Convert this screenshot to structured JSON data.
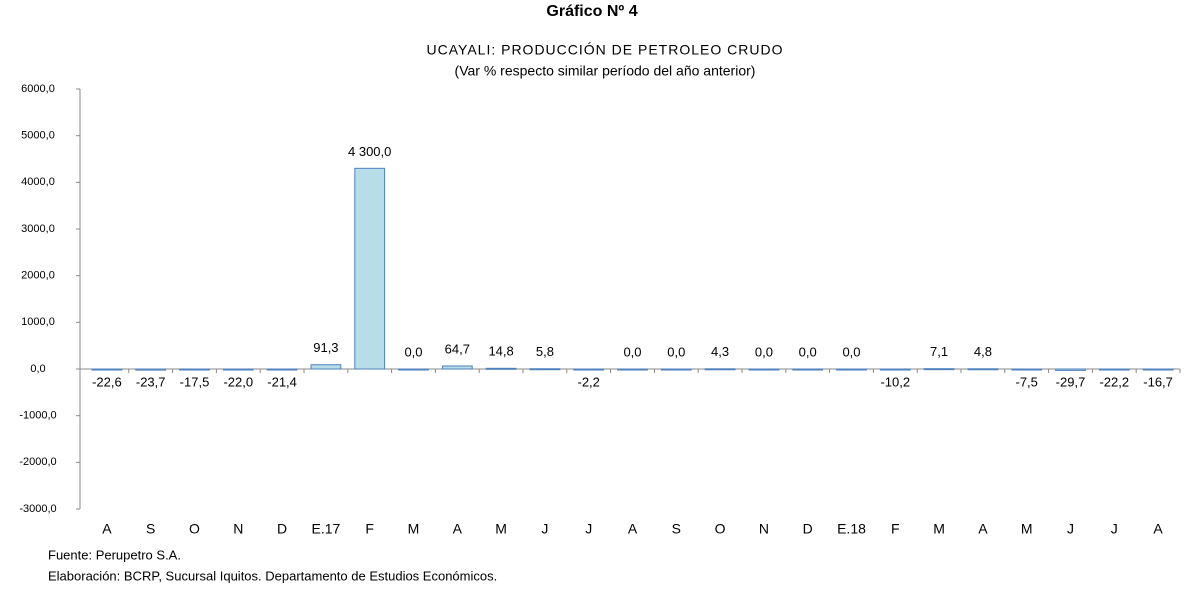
{
  "chart_data": {
    "type": "bar",
    "title": "Gráfico Nº 4",
    "subtitle": "UCAYALI: PRODUCCIÓN DE PETROLEO CRUDO",
    "subtitle2": "(Var % respecto similar período del año anterior)",
    "categories": [
      "A",
      "S",
      "O",
      "N",
      "D",
      "E.17",
      "F",
      "M",
      "A",
      "M",
      "J",
      "J",
      "A",
      "S",
      "O",
      "N",
      "D",
      "E.18",
      "F",
      "M",
      "A",
      "M",
      "J",
      "J",
      "A"
    ],
    "values": [
      -22.6,
      -23.7,
      -17.5,
      -22.0,
      -21.4,
      91.3,
      4300.0,
      0.0,
      64.7,
      14.8,
      5.8,
      -2.2,
      0.0,
      0.0,
      4.3,
      0.0,
      0.0,
      0.0,
      -10.2,
      7.1,
      4.8,
      -7.5,
      -29.7,
      -22.2,
      -16.7
    ],
    "value_labels": [
      "-22,6",
      "-23,7",
      "-17,5",
      "-22,0",
      "-21,4",
      "91,3",
      "4 300,0",
      "0,0",
      "64,7",
      "14,8",
      "5,8",
      "-2,2",
      "0,0",
      "0,0",
      "4,3",
      "0,0",
      "0,0",
      "0,0",
      "-10,2",
      "7,1",
      "4,8",
      "-7,5",
      "-29,7",
      "-22,2",
      "-16,7"
    ],
    "color": "#b7dde8",
    "ylim": [
      -3000,
      6000
    ],
    "yticks": [
      {
        "value": -3000,
        "label": "-3000,0"
      },
      {
        "value": -2000,
        "label": "-2000,0"
      },
      {
        "value": -1000,
        "label": "-1000,0"
      },
      {
        "value": 0,
        "label": "0,0"
      },
      {
        "value": 1000,
        "label": "1000,0"
      },
      {
        "value": 2000,
        "label": "2000,0"
      },
      {
        "value": 3000,
        "label": "3000,0"
      },
      {
        "value": 4000,
        "label": "4000,0"
      },
      {
        "value": 5000,
        "label": "5000,0"
      },
      {
        "value": 6000,
        "label": "6000,0"
      }
    ],
    "grid": false,
    "source": "Fuente: Perupetro S.A.",
    "note": "Elaboración: BCRP, Sucursal Iquitos. Departamento de Estudios Económicos."
  }
}
